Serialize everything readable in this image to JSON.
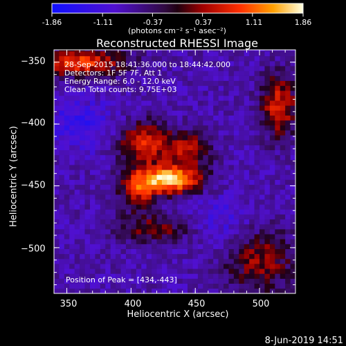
{
  "colorbar": {
    "ticks": [
      "-1.86",
      "-1.11",
      "-0.37",
      "0.37",
      "1.11",
      "1.86"
    ],
    "tick_values": [
      -1.86,
      -1.11,
      -0.37,
      0.37,
      1.11,
      1.86
    ],
    "units": "(photons cm⁻² s⁻¹ asec⁻²)",
    "range": [
      -1.86,
      1.86
    ]
  },
  "chart_data": {
    "type": "heatmap",
    "title": "Reconstructed RHESSI Image",
    "xlabel": "Heliocentric X (arcsec)",
    "ylabel": "Heliocentric Y (arcsec)",
    "xlim": [
      340,
      528
    ],
    "ylim": [
      -537,
      -340
    ],
    "x_ticks": [
      350,
      400,
      450,
      500
    ],
    "y_ticks": [
      -350,
      -400,
      -450,
      -500
    ],
    "x_tick_labels": [
      "350",
      "400",
      "450",
      "500"
    ],
    "y_tick_labels": [
      "−350",
      "−400",
      "−450",
      "−500"
    ],
    "peak": [
      434,
      -443
    ],
    "annotations": {
      "time": "28-Sep-2015 18:41:36.000 to 18:44:42.000",
      "detectors": "Detectors: 1F 5F 7F, Att 1",
      "energy": "Energy Range: 6.0 - 12.0 keV",
      "clean": "Clean     Total counts: 9.75E+03",
      "peak": "Position of Peak = [434,-443]"
    }
  },
  "footer": {
    "date": "8-Jun-2019 14:51"
  }
}
